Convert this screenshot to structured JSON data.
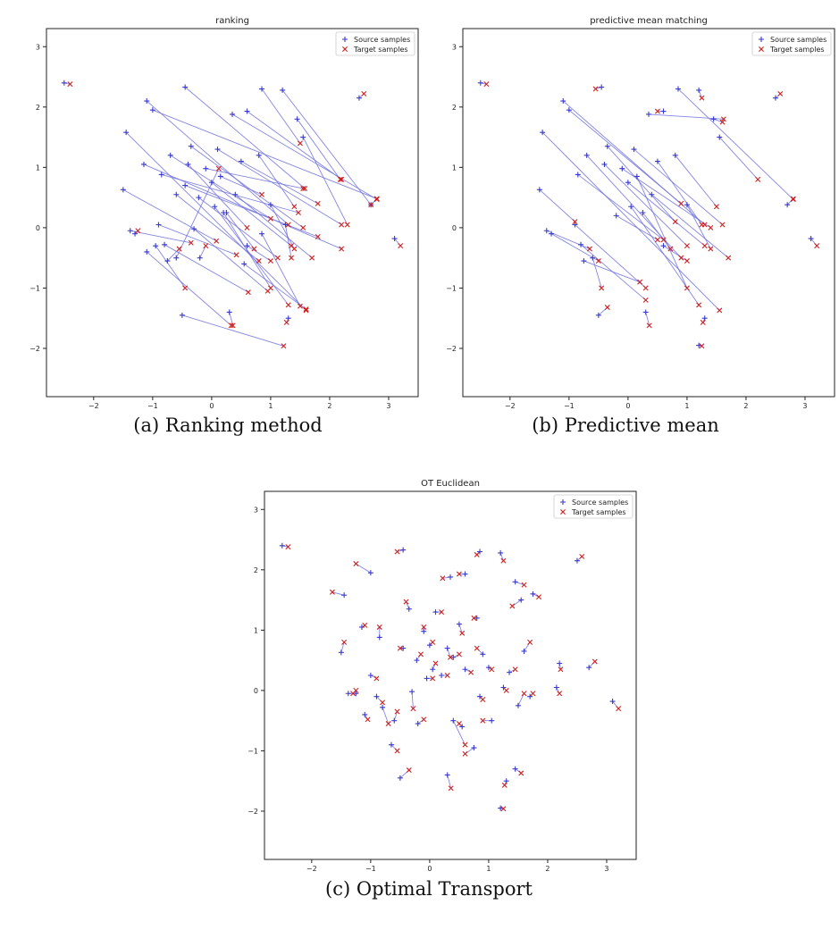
{
  "captions": [
    "(a) Ranking method",
    "(b) Predictive mean",
    "(c) Optimal Transport"
  ],
  "colors": {
    "source": "#3a3acc",
    "target": "#cc2020",
    "link": "#7070dd",
    "axis": "#222222"
  },
  "chart_data": [
    {
      "type": "scatter",
      "title": "ranking",
      "xlabel": "",
      "ylabel": "",
      "xlim": [
        -2.8,
        3.5
      ],
      "ylim": [
        -2.8,
        3.3
      ],
      "xticks": [
        -2,
        -1,
        0,
        1,
        2,
        3
      ],
      "yticks": [
        -2,
        -1,
        0,
        1,
        2,
        3
      ],
      "grid": false,
      "legend_position": "top-right",
      "series": [
        {
          "name": "Source samples",
          "marker": "+"
        },
        {
          "name": "Target samples",
          "marker": "x"
        }
      ],
      "pair_lines": "source-to-target",
      "pairs": [
        [
          -2.5,
          2.4,
          -2.4,
          2.38
        ],
        [
          -1.45,
          1.58,
          1.6,
          -1.37
        ],
        [
          -1.5,
          0.63,
          0.08,
          -0.22
        ],
        [
          -1.38,
          -0.05,
          -0.35,
          -0.25
        ],
        [
          -1.15,
          1.05,
          2.2,
          -0.35
        ],
        [
          -1.1,
          -0.4,
          0.33,
          -1.62
        ],
        [
          -1.0,
          1.95,
          2.8,
          0.48
        ],
        [
          -0.85,
          0.88,
          1.47,
          0.25
        ],
        [
          -0.8,
          -0.28,
          0.62,
          -1.07
        ],
        [
          -0.6,
          -0.5,
          0.12,
          0.98
        ],
        [
          -0.5,
          -1.45,
          1.22,
          -1.96
        ],
        [
          -0.45,
          2.33,
          1.58,
          0.65
        ],
        [
          -0.45,
          0.7,
          1.8,
          -0.15
        ],
        [
          -0.35,
          1.35,
          1.55,
          0.0
        ],
        [
          -0.3,
          -0.02,
          0.95,
          -1.05
        ],
        [
          -0.22,
          0.5,
          1.12,
          -0.5
        ],
        [
          -0.1,
          0.98,
          1.55,
          0.65
        ],
        [
          0.0,
          0.75,
          1.35,
          -0.3
        ],
        [
          0.05,
          0.35,
          1.3,
          -1.28
        ],
        [
          0.1,
          1.3,
          2.2,
          0.05
        ],
        [
          0.2,
          0.25,
          1.0,
          -1.0
        ],
        [
          0.3,
          -1.4,
          0.36,
          -1.62
        ],
        [
          0.35,
          1.88,
          2.8,
          0.47
        ],
        [
          0.4,
          0.55,
          1.7,
          -0.5
        ],
        [
          0.5,
          1.1,
          1.8,
          0.4
        ],
        [
          0.55,
          -0.6,
          1.6,
          -1.35
        ],
        [
          0.6,
          1.93,
          2.2,
          0.8
        ],
        [
          0.8,
          1.2,
          1.4,
          0.35
        ],
        [
          0.85,
          -0.1,
          1.5,
          -1.3
        ],
        [
          0.85,
          2.3,
          1.5,
          1.4
        ],
        [
          1.0,
          0.38,
          1.4,
          -0.35
        ],
        [
          1.2,
          2.28,
          2.7,
          0.38
        ],
        [
          1.25,
          0.05,
          1.35,
          -0.5
        ],
        [
          1.3,
          -1.5,
          1.27,
          -1.57
        ],
        [
          1.45,
          1.8,
          2.18,
          0.8
        ],
        [
          1.55,
          1.5,
          2.3,
          0.05
        ],
        [
          -1.1,
          2.1,
          1.3,
          0.05
        ],
        [
          -0.9,
          0.05,
          0.42,
          -0.45
        ],
        [
          -0.95,
          -0.3,
          -0.45,
          -1.0
        ],
        [
          -0.7,
          1.2,
          1.0,
          0.15
        ],
        [
          -0.6,
          0.55,
          0.8,
          -0.55
        ],
        [
          -0.4,
          1.05,
          0.6,
          0.0
        ],
        [
          0.6,
          -0.3,
          1.0,
          -0.55
        ],
        [
          0.25,
          0.25,
          0.72,
          -0.35
        ],
        [
          0.15,
          0.85,
          0.85,
          0.55
        ],
        [
          2.5,
          2.15,
          2.58,
          2.22
        ],
        [
          3.1,
          -0.18,
          3.2,
          -0.3
        ],
        [
          2.7,
          0.38,
          2.8,
          0.48
        ],
        [
          -0.2,
          -0.5,
          -0.1,
          -0.3
        ],
        [
          -1.3,
          -0.1,
          -1.25,
          -0.05
        ],
        [
          -0.75,
          -0.55,
          -0.55,
          -0.35
        ]
      ]
    },
    {
      "type": "scatter",
      "title": "predictive mean matching",
      "xlabel": "",
      "ylabel": "",
      "xlim": [
        -2.8,
        3.5
      ],
      "ylim": [
        -2.8,
        3.3
      ],
      "xticks": [
        -2,
        -1,
        0,
        1,
        2,
        3
      ],
      "yticks": [
        -2,
        -1,
        0,
        1,
        2,
        3
      ],
      "grid": false,
      "legend_position": "top-right",
      "series": [
        {
          "name": "Source samples",
          "marker": "+"
        },
        {
          "name": "Target samples",
          "marker": "x"
        }
      ],
      "pair_lines": "source-to-target",
      "pairs": [
        [
          -2.5,
          2.4,
          -2.4,
          2.38
        ],
        [
          -1.45,
          1.58,
          1.55,
          -1.37
        ],
        [
          -1.5,
          0.63,
          -0.9,
          0.1
        ],
        [
          -1.38,
          -0.05,
          -0.65,
          -0.35
        ],
        [
          -1.0,
          1.95,
          0.9,
          0.4
        ],
        [
          -0.85,
          0.88,
          0.6,
          -0.2
        ],
        [
          -0.8,
          -0.28,
          0.3,
          -1.2
        ],
        [
          -0.6,
          -0.5,
          -0.45,
          -1.0
        ],
        [
          -0.5,
          -1.45,
          -0.35,
          -1.32
        ],
        [
          -0.45,
          2.33,
          -0.55,
          2.3
        ],
        [
          -0.35,
          1.35,
          0.8,
          0.1
        ],
        [
          -0.1,
          0.98,
          1.4,
          0.0
        ],
        [
          0.0,
          0.75,
          1.3,
          -0.3
        ],
        [
          0.05,
          0.35,
          1.2,
          -1.28
        ],
        [
          0.1,
          1.3,
          1.6,
          0.05
        ],
        [
          0.3,
          -1.4,
          0.36,
          -1.62
        ],
        [
          0.35,
          1.88,
          1.62,
          1.8
        ],
        [
          0.4,
          0.55,
          1.7,
          -0.5
        ],
        [
          0.6,
          1.93,
          0.5,
          1.93
        ],
        [
          0.8,
          1.2,
          1.5,
          0.35
        ],
        [
          0.85,
          2.3,
          2.8,
          0.47
        ],
        [
          1.0,
          0.38,
          1.4,
          -0.35
        ],
        [
          1.2,
          2.28,
          1.25,
          2.15
        ],
        [
          1.3,
          -1.5,
          1.27,
          -1.57
        ],
        [
          1.45,
          1.8,
          1.6,
          1.75
        ],
        [
          1.55,
          1.5,
          2.2,
          0.8
        ],
        [
          -1.1,
          2.1,
          1.3,
          0.05
        ],
        [
          -0.9,
          0.05,
          0.3,
          -1.0
        ],
        [
          -0.7,
          1.2,
          0.9,
          -0.5
        ],
        [
          -0.4,
          1.05,
          1.0,
          -0.3
        ],
        [
          0.6,
          -0.3,
          1.0,
          -0.55
        ],
        [
          0.25,
          0.25,
          0.72,
          -0.35
        ],
        [
          0.15,
          0.85,
          1.0,
          -1.0
        ],
        [
          2.5,
          2.15,
          2.58,
          2.22
        ],
        [
          3.1,
          -0.18,
          3.2,
          -0.3
        ],
        [
          2.7,
          0.38,
          2.8,
          0.48
        ],
        [
          -1.3,
          -0.1,
          -0.5,
          -0.55
        ],
        [
          -0.75,
          -0.55,
          0.2,
          -0.9
        ],
        [
          1.2,
          -1.95,
          1.25,
          -1.96
        ],
        [
          -0.2,
          0.2,
          0.5,
          -0.2
        ],
        [
          0.5,
          1.1,
          1.25,
          0.05
        ]
      ]
    },
    {
      "type": "scatter",
      "title": "OT Euclidean",
      "xlabel": "",
      "ylabel": "",
      "xlim": [
        -2.8,
        3.5
      ],
      "ylim": [
        -2.8,
        3.3
      ],
      "xticks": [
        -2,
        -1,
        0,
        1,
        2,
        3
      ],
      "yticks": [
        -2,
        -1,
        0,
        1,
        2,
        3
      ],
      "grid": false,
      "legend_position": "top-right",
      "series": [
        {
          "name": "Source samples",
          "marker": "+"
        },
        {
          "name": "Target samples",
          "marker": "x"
        }
      ],
      "pair_lines": "source-to-target",
      "pairs": [
        [
          -2.5,
          2.4,
          -2.4,
          2.38
        ],
        [
          -1.45,
          1.58,
          -1.65,
          1.63
        ],
        [
          -1.5,
          0.63,
          -1.45,
          0.8
        ],
        [
          -1.38,
          -0.05,
          -1.3,
          -0.05
        ],
        [
          -1.15,
          1.05,
          -1.1,
          1.08
        ],
        [
          -1.1,
          -0.4,
          -1.05,
          -0.48
        ],
        [
          -1.0,
          1.95,
          -1.25,
          2.1
        ],
        [
          -0.85,
          0.88,
          -0.85,
          1.05
        ],
        [
          -0.8,
          -0.28,
          -0.7,
          -0.55
        ],
        [
          -0.6,
          -0.5,
          -0.55,
          -0.35
        ],
        [
          -0.5,
          -1.45,
          -0.35,
          -1.32
        ],
        [
          -0.45,
          2.33,
          -0.55,
          2.3
        ],
        [
          -0.45,
          0.7,
          -0.5,
          0.7
        ],
        [
          -0.35,
          1.35,
          -0.4,
          1.47
        ],
        [
          -0.3,
          -0.02,
          -0.28,
          -0.3
        ],
        [
          -0.22,
          0.5,
          -0.15,
          0.6
        ],
        [
          -0.1,
          0.98,
          -0.1,
          1.05
        ],
        [
          0.0,
          0.75,
          0.05,
          0.8
        ],
        [
          0.05,
          0.35,
          0.1,
          0.45
        ],
        [
          0.1,
          1.3,
          0.2,
          1.3
        ],
        [
          0.2,
          0.25,
          0.3,
          0.25
        ],
        [
          0.3,
          -1.4,
          0.36,
          -1.62
        ],
        [
          0.35,
          1.88,
          0.22,
          1.86
        ],
        [
          0.4,
          0.55,
          0.5,
          0.6
        ],
        [
          0.5,
          1.1,
          0.55,
          0.95
        ],
        [
          0.55,
          -0.6,
          0.5,
          -0.55
        ],
        [
          0.6,
          1.93,
          0.5,
          1.93
        ],
        [
          0.8,
          1.2,
          0.75,
          1.2
        ],
        [
          0.85,
          -0.1,
          0.9,
          -0.15
        ],
        [
          0.85,
          2.3,
          0.8,
          2.25
        ],
        [
          1.0,
          0.38,
          1.05,
          0.35
        ],
        [
          1.2,
          2.28,
          1.25,
          2.15
        ],
        [
          1.25,
          0.05,
          1.3,
          0.0
        ],
        [
          1.3,
          -1.5,
          1.27,
          -1.57
        ],
        [
          1.45,
          1.8,
          1.6,
          1.75
        ],
        [
          1.55,
          1.5,
          1.4,
          1.4
        ],
        [
          2.5,
          2.15,
          2.58,
          2.22
        ],
        [
          3.1,
          -0.18,
          3.2,
          -0.3
        ],
        [
          2.7,
          0.38,
          2.8,
          0.48
        ],
        [
          1.45,
          -1.3,
          1.55,
          -1.37
        ],
        [
          1.2,
          -1.95,
          1.25,
          -1.96
        ],
        [
          2.2,
          0.45,
          2.22,
          0.35
        ],
        [
          1.6,
          0.65,
          1.7,
          0.8
        ],
        [
          1.75,
          1.6,
          1.85,
          1.55
        ],
        [
          2.15,
          0.05,
          2.2,
          -0.05
        ],
        [
          -0.9,
          -0.1,
          -0.8,
          -0.2
        ],
        [
          -0.65,
          -0.9,
          -0.55,
          -1.0
        ],
        [
          0.4,
          -0.5,
          0.6,
          -0.9
        ],
        [
          0.75,
          -0.95,
          0.6,
          -1.05
        ],
        [
          1.05,
          -0.5,
          0.9,
          -0.5
        ],
        [
          -0.2,
          -0.55,
          -0.1,
          -0.48
        ],
        [
          -0.05,
          0.2,
          0.05,
          0.2
        ],
        [
          0.3,
          0.7,
          0.35,
          0.55
        ],
        [
          0.6,
          0.35,
          0.7,
          0.3
        ],
        [
          0.9,
          0.6,
          0.8,
          0.7
        ],
        [
          1.35,
          0.3,
          1.45,
          0.35
        ],
        [
          1.5,
          -0.25,
          1.6,
          -0.05
        ],
        [
          1.7,
          -0.1,
          1.75,
          -0.05
        ],
        [
          -1.0,
          0.25,
          -0.9,
          0.2
        ],
        [
          -1.25,
          -0.05,
          -1.25,
          0.0
        ]
      ]
    }
  ]
}
